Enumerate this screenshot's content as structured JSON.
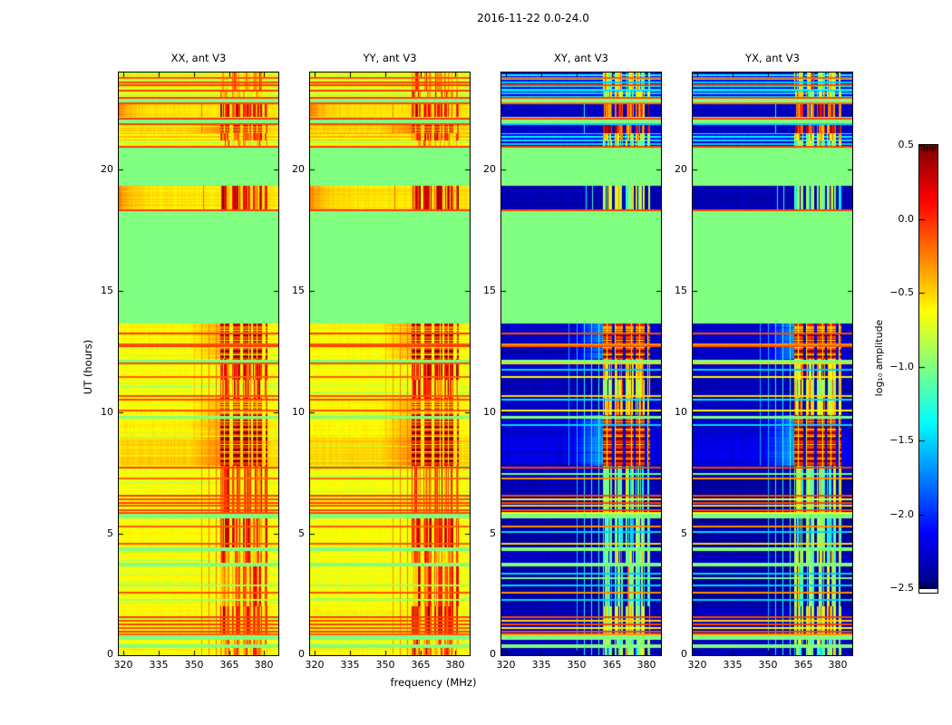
{
  "chart_data": {
    "type": "heatmap",
    "title": "2016-11-22 0.0-24.0",
    "xlabel": "frequency (MHz)",
    "ylabel": "UT (hours)",
    "x_ticks": [
      320,
      335,
      350,
      365,
      380
    ],
    "y_ticks": [
      0,
      5,
      10,
      15,
      20
    ],
    "x_range": [
      318,
      386
    ],
    "y_range": [
      0,
      24
    ],
    "grid": false,
    "colormap": "jet",
    "colorbar": {
      "label": "log₁₀ amplitude",
      "range": [
        -2.5,
        0.5
      ],
      "tick_values": [
        0.5,
        0.0,
        -0.5,
        -1.0,
        -1.5,
        -2.0,
        -2.5
      ],
      "tick_labels": [
        "0.5",
        "0.0",
        "−0.5",
        "−1.0",
        "−1.5",
        "−2.0",
        "−2.5"
      ]
    },
    "panels": [
      {
        "title": "XX, ant V3",
        "profile": "auto",
        "seed": 11
      },
      {
        "title": "YY, ant V3",
        "profile": "auto",
        "seed": 23
      },
      {
        "title": "XY, ant V3",
        "profile": "cross",
        "seed": 37
      },
      {
        "title": "YX, ant V3",
        "profile": "cross",
        "seed": 51
      }
    ],
    "rfi_columns": [
      [
        361.4,
        365.2
      ],
      [
        366.3,
        369.9
      ],
      [
        370.8,
        374.4
      ],
      [
        375.3,
        379.1
      ],
      [
        380.1,
        381.4
      ]
    ],
    "flagged_value": -1.0,
    "profiles": {
      "auto": {
        "stripe_amp": 0.2,
        "gap_val": -0.6,
        "spill_amp": 0.32,
        "streak_amp": 0.3,
        "bright_chance": 0.06,
        "bands": [
          [
            23.25,
            24.0,
            -0.78,
            -0.3,
            "s"
          ],
          [
            23.0,
            23.25,
            -0.82,
            -0.38,
            "s"
          ],
          [
            22.76,
            23.0,
            -1.0,
            -1.0,
            "f"
          ],
          [
            22.16,
            22.72,
            -0.55,
            0.05,
            "g"
          ],
          [
            21.9,
            22.16,
            -1.0,
            -1.0,
            "f"
          ],
          [
            21.5,
            21.9,
            -0.5,
            0.32,
            "c"
          ],
          [
            21.2,
            21.5,
            -0.62,
            -0.12,
            "s"
          ],
          [
            20.95,
            21.2,
            -0.85,
            -0.5,
            "s"
          ],
          [
            19.35,
            20.95,
            -1.0,
            -1.0,
            "f"
          ],
          [
            18.35,
            19.35,
            -0.55,
            0.12,
            "g"
          ],
          [
            13.65,
            18.35,
            -1.0,
            -1.0,
            "f"
          ],
          [
            13.25,
            13.65,
            -0.6,
            0.3,
            "c"
          ],
          [
            12.2,
            13.25,
            -0.62,
            0.45,
            "c"
          ],
          [
            11.35,
            12.2,
            -0.65,
            0.08,
            "v"
          ],
          [
            10.6,
            11.35,
            -0.67,
            -0.12,
            "v"
          ],
          [
            9.9,
            10.6,
            -0.62,
            0.18,
            "c"
          ],
          [
            8.95,
            9.9,
            -0.6,
            0.42,
            "c"
          ],
          [
            7.8,
            8.95,
            -0.5,
            0.5,
            "c"
          ],
          [
            5.85,
            7.8,
            -0.65,
            -0.08,
            "v"
          ],
          [
            5.65,
            5.85,
            -1.0,
            -1.0,
            "f"
          ],
          [
            4.45,
            5.65,
            -0.63,
            -0.02,
            "v"
          ],
          [
            4.3,
            4.45,
            -1.0,
            -1.0,
            "f"
          ],
          [
            3.8,
            4.3,
            -0.65,
            -0.18,
            "v"
          ],
          [
            3.65,
            3.8,
            -1.0,
            -1.0,
            "f"
          ],
          [
            2.0,
            3.65,
            -0.65,
            -0.12,
            "v"
          ],
          [
            0.9,
            2.0,
            -0.62,
            0.02,
            "v"
          ],
          [
            0.65,
            0.9,
            -1.0,
            -1.0,
            "f"
          ],
          [
            0.45,
            0.65,
            -0.66,
            -0.25,
            "v"
          ],
          [
            0.3,
            0.45,
            -1.0,
            -1.0,
            "f"
          ],
          [
            0.0,
            0.3,
            -0.6,
            -0.3,
            "v"
          ]
        ],
        "lines": [
          [
            23.8,
            -0.12
          ],
          [
            23.62,
            -0.08
          ],
          [
            23.5,
            -0.05
          ],
          [
            23.28,
            -0.06
          ],
          [
            23.0,
            -0.05
          ],
          [
            22.78,
            -0.1
          ],
          [
            22.14,
            -0.05
          ],
          [
            21.92,
            -0.08
          ],
          [
            20.97,
            -0.05
          ],
          [
            18.37,
            -0.05
          ],
          [
            13.27,
            -0.05
          ],
          [
            12.85,
            -0.12
          ],
          [
            12.76,
            -0.06
          ],
          [
            12.17,
            -1.0
          ],
          [
            12.05,
            -0.1
          ],
          [
            11.5,
            -0.15
          ],
          [
            10.7,
            -0.1
          ],
          [
            10.56,
            -0.08
          ],
          [
            10.12,
            -0.12
          ],
          [
            9.87,
            -1.0
          ],
          [
            7.78,
            -0.05
          ],
          [
            7.3,
            -0.18
          ],
          [
            6.6,
            -0.06
          ],
          [
            6.45,
            -0.1
          ],
          [
            6.3,
            -0.06
          ],
          [
            6.18,
            -0.12
          ],
          [
            6.02,
            -0.06
          ],
          [
            5.9,
            -0.1
          ],
          [
            5.35,
            -0.15
          ],
          [
            4.62,
            -0.12
          ],
          [
            2.9,
            -0.9
          ],
          [
            2.62,
            -0.12
          ],
          [
            2.3,
            -0.85
          ],
          [
            1.62,
            -0.06
          ],
          [
            1.45,
            -0.1
          ],
          [
            1.3,
            -0.06
          ],
          [
            1.15,
            -0.12
          ],
          [
            1.0,
            -0.06
          ],
          [
            0.9,
            -0.15
          ]
        ],
        "vlines": [
          [
            353.2,
            0,
            13.65,
            -0.3
          ],
          [
            356.3,
            0,
            13.65,
            -0.25
          ],
          [
            359.4,
            0,
            13.65,
            -0.2
          ],
          [
            350.0,
            7.8,
            13.65,
            -0.45
          ],
          [
            354.0,
            18.35,
            19.35,
            -0.2
          ],
          [
            353.0,
            21.5,
            22.72,
            -0.2
          ]
        ]
      },
      "cross": {
        "stripe_amp": 0.72,
        "gap_val": -0.58,
        "spill_amp": 0.85,
        "streak_amp": 0.35,
        "bright_chance": 0.12,
        "bands": [
          [
            23.25,
            24.0,
            -2.1,
            -0.75,
            "s"
          ],
          [
            23.0,
            23.25,
            -2.2,
            -0.85,
            "s"
          ],
          [
            22.76,
            23.0,
            -1.0,
            -1.0,
            "f"
          ],
          [
            22.16,
            22.72,
            -2.3,
            -0.2,
            "v"
          ],
          [
            21.9,
            22.16,
            -1.0,
            -1.0,
            "f"
          ],
          [
            21.5,
            21.9,
            -2.3,
            0.0,
            "v"
          ],
          [
            21.2,
            21.5,
            -2.1,
            -0.7,
            "s"
          ],
          [
            20.95,
            21.2,
            -2.25,
            -0.95,
            "s"
          ],
          [
            19.35,
            20.95,
            -1.0,
            -1.0,
            "f"
          ],
          [
            18.35,
            19.35,
            -2.35,
            -1.0,
            "v"
          ],
          [
            13.65,
            18.35,
            -1.0,
            -1.0,
            "f"
          ],
          [
            13.25,
            13.65,
            -2.25,
            0.1,
            "c"
          ],
          [
            12.2,
            13.25,
            -2.3,
            0.45,
            "c"
          ],
          [
            11.35,
            12.2,
            -2.3,
            -0.5,
            "v"
          ],
          [
            10.6,
            11.35,
            -2.35,
            -0.75,
            "v"
          ],
          [
            9.9,
            10.6,
            -2.3,
            -0.5,
            "v"
          ],
          [
            8.95,
            9.9,
            -2.25,
            0.38,
            "c"
          ],
          [
            7.8,
            8.95,
            -2.2,
            0.5,
            "c"
          ],
          [
            5.85,
            7.8,
            -2.35,
            -1.05,
            "v"
          ],
          [
            5.65,
            5.85,
            -1.0,
            -1.0,
            "f"
          ],
          [
            4.45,
            5.65,
            -2.4,
            -1.1,
            "v"
          ],
          [
            4.3,
            4.45,
            -1.0,
            -1.0,
            "f"
          ],
          [
            3.8,
            4.3,
            -2.3,
            -1.0,
            "v"
          ],
          [
            3.65,
            3.8,
            -1.0,
            -1.0,
            "f"
          ],
          [
            2.0,
            3.65,
            -2.4,
            -1.05,
            "v"
          ],
          [
            0.9,
            2.0,
            -2.3,
            -0.8,
            "v"
          ],
          [
            0.65,
            0.9,
            -1.0,
            -1.0,
            "f"
          ],
          [
            0.45,
            0.65,
            -2.3,
            -1.0,
            "v"
          ],
          [
            0.3,
            0.45,
            -1.0,
            -1.0,
            "f"
          ],
          [
            0.0,
            0.3,
            -2.35,
            -1.1,
            "v"
          ]
        ],
        "lines": [
          [
            23.8,
            -0.15
          ],
          [
            23.62,
            -1.5
          ],
          [
            23.5,
            -0.1
          ],
          [
            23.28,
            -1.45
          ],
          [
            23.0,
            -0.08
          ],
          [
            22.78,
            -0.2
          ],
          [
            22.14,
            -0.08
          ],
          [
            21.92,
            -1.5
          ],
          [
            20.97,
            -0.06
          ],
          [
            18.37,
            -0.06
          ],
          [
            13.27,
            -0.1
          ],
          [
            12.85,
            -0.3
          ],
          [
            12.76,
            -0.1
          ],
          [
            12.17,
            -1.0
          ],
          [
            12.05,
            -0.5
          ],
          [
            11.8,
            -1.5
          ],
          [
            11.5,
            -0.6
          ],
          [
            10.7,
            -0.5
          ],
          [
            10.56,
            -1.45
          ],
          [
            10.12,
            -0.6
          ],
          [
            9.87,
            -1.0
          ],
          [
            9.5,
            -1.5
          ],
          [
            7.78,
            -0.06
          ],
          [
            7.5,
            -1.05
          ],
          [
            7.3,
            -0.3
          ],
          [
            6.6,
            -0.08
          ],
          [
            6.45,
            -0.6
          ],
          [
            6.3,
            -0.08
          ],
          [
            6.18,
            -0.5
          ],
          [
            6.02,
            -0.08
          ],
          [
            5.9,
            -0.6
          ],
          [
            5.35,
            -0.3
          ],
          [
            5.1,
            -1.5
          ],
          [
            4.62,
            -0.5
          ],
          [
            3.4,
            -1.5
          ],
          [
            3.2,
            -1.05
          ],
          [
            2.9,
            -1.5
          ],
          [
            2.62,
            -0.3
          ],
          [
            2.3,
            -1.5
          ],
          [
            1.62,
            -0.08
          ],
          [
            1.45,
            -0.5
          ],
          [
            1.3,
            -0.08
          ],
          [
            1.15,
            -0.6
          ],
          [
            1.0,
            -0.08
          ],
          [
            0.9,
            -0.3
          ]
        ],
        "vlines": [
          [
            353.2,
            0,
            13.65,
            -1.3
          ],
          [
            356.3,
            0,
            13.65,
            -1.25
          ],
          [
            359.4,
            0,
            13.65,
            -1.2
          ],
          [
            350.0,
            0,
            13.65,
            -1.55
          ],
          [
            346.5,
            7.8,
            13.65,
            -1.6
          ],
          [
            354.0,
            18.35,
            19.35,
            -1.3
          ],
          [
            356.5,
            18.35,
            19.35,
            -1.25
          ],
          [
            353.0,
            21.5,
            22.72,
            -1.3
          ]
        ]
      }
    }
  }
}
